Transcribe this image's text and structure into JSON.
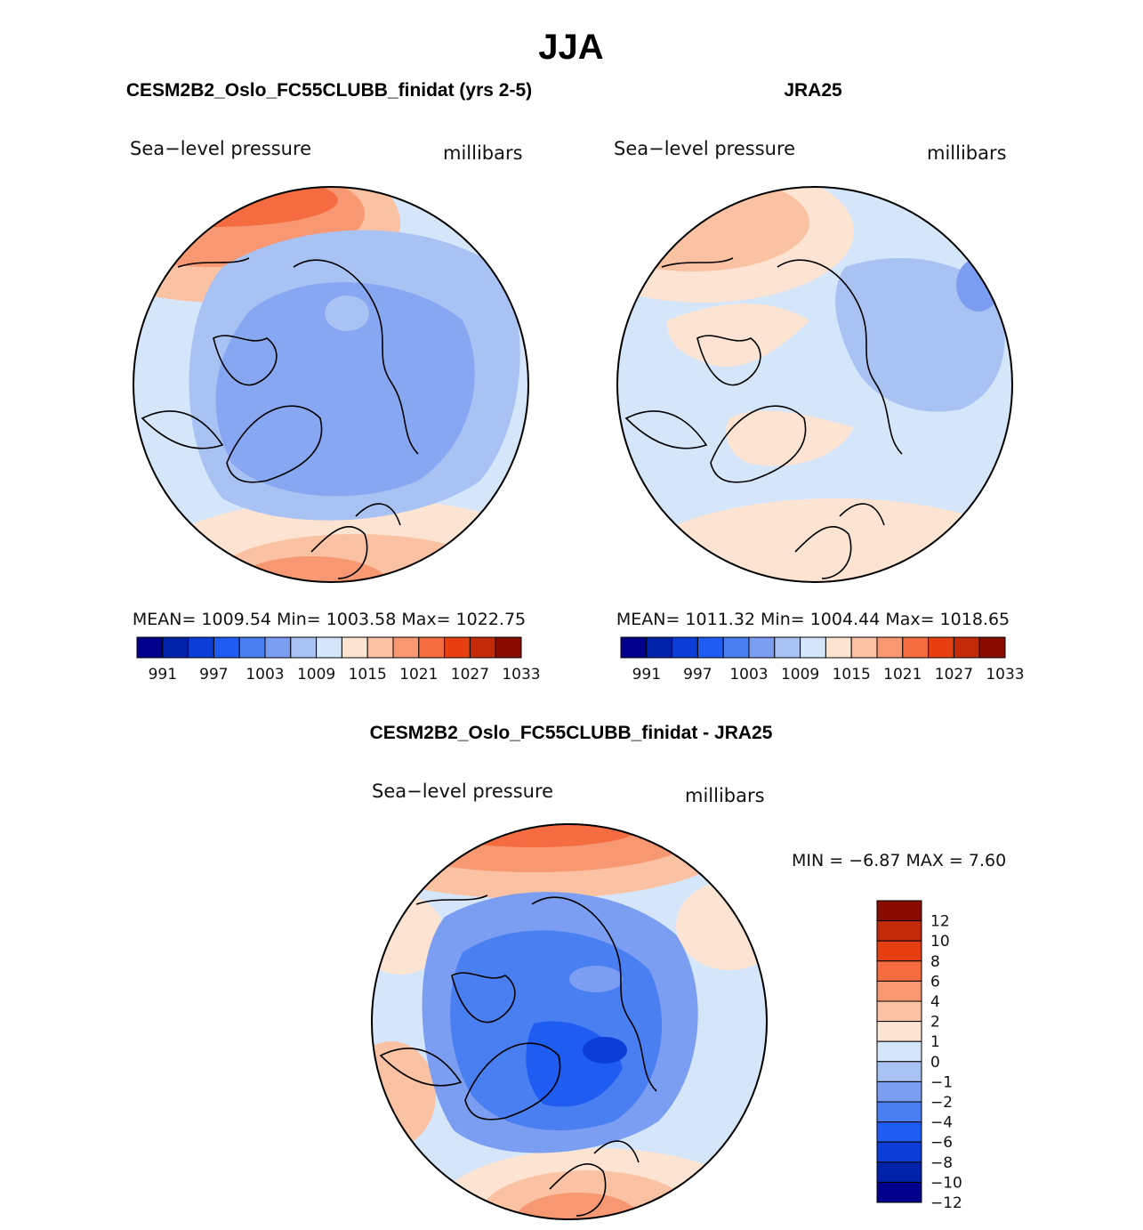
{
  "title": "JJA",
  "panels": [
    {
      "id": "model",
      "header": "CESM2B2_Oslo_FC55CLUBB_finidat (yrs 2-5)",
      "variable": "Sea−level pressure",
      "units": "millibars",
      "stats": "MEAN=  1009.54   Min=  1003.58   Max=  1022.75"
    },
    {
      "id": "obs",
      "header": "JRA25",
      "variable": "Sea−level pressure",
      "units": "millibars",
      "stats": "MEAN=  1011.32   Min=  1004.44   Max=  1018.65"
    },
    {
      "id": "diff",
      "header": "CESM2B2_Oslo_FC55CLUBB_finidat - JRA25",
      "variable": "Sea−level pressure",
      "units": "millibars",
      "stats": "MIN  =    −6.87  MAX  =     7.60"
    }
  ],
  "colorbar_abs": {
    "colors": [
      "#00008a",
      "#0022aa",
      "#0a3ed6",
      "#1f5cf2",
      "#4a7ff2",
      "#7c9ef2",
      "#a9c2f4",
      "#d5e6fb",
      "#fde4d2",
      "#fbc1a3",
      "#f79873",
      "#f56c41",
      "#e63f12",
      "#c22a08",
      "#8a0b00"
    ],
    "labels": [
      "991",
      "997",
      "1003",
      "1009",
      "1015",
      "1021",
      "1027",
      "1033"
    ]
  },
  "colorbar_diff": {
    "colors": [
      "#8a0b00",
      "#c22a08",
      "#e63f12",
      "#f56c41",
      "#f79873",
      "#fbc1a3",
      "#fde4d2",
      "#d5e6fb",
      "#a9c2f4",
      "#7c9ef2",
      "#4a7ff2",
      "#1f5cf2",
      "#0a3ed6",
      "#0022aa",
      "#00008a"
    ],
    "labels": [
      "12",
      "10",
      "8",
      "6",
      "4",
      "2",
      "1",
      "0",
      "−1",
      "−2",
      "−4",
      "−6",
      "−8",
      "−10",
      "−12"
    ]
  }
}
